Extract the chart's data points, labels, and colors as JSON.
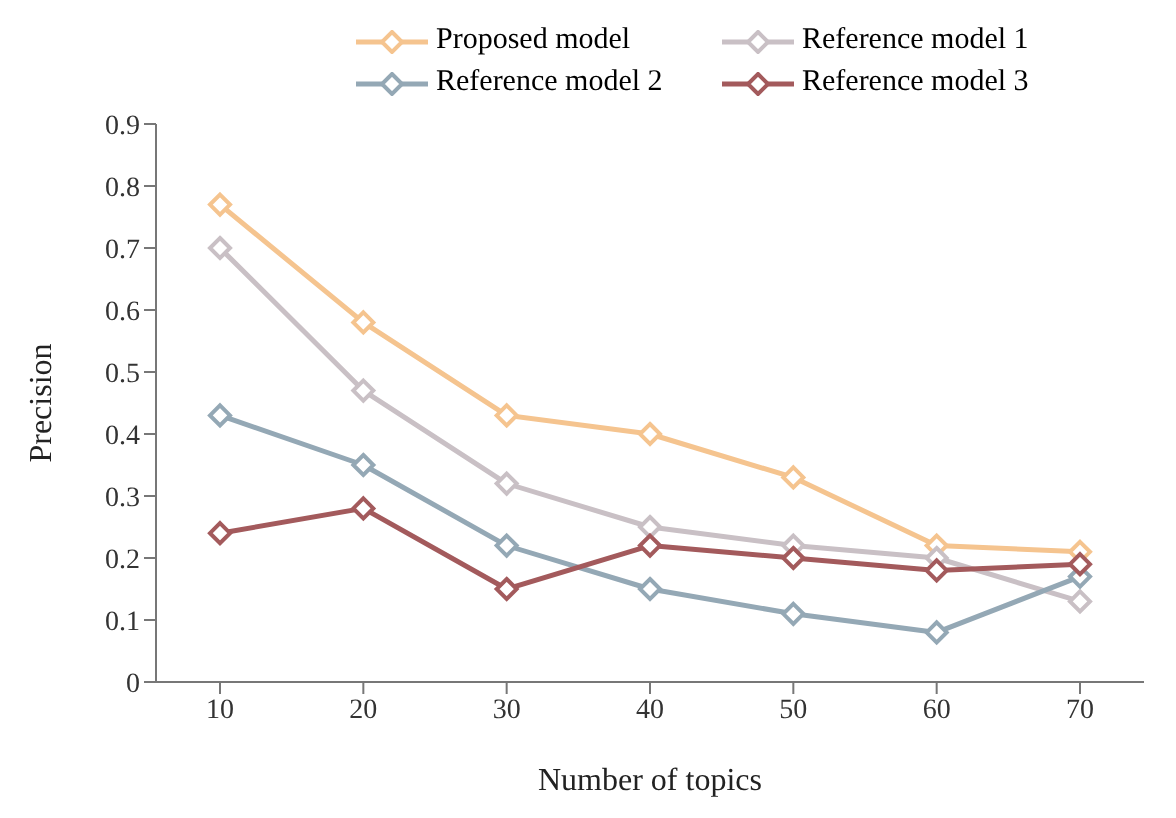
{
  "chart_data": {
    "type": "line",
    "xlabel": "Number of topics",
    "ylabel": "Precision",
    "categories": [
      "10",
      "20",
      "30",
      "40",
      "50",
      "60",
      "70"
    ],
    "series": [
      {
        "name": "Proposed model",
        "color": "#f5c48f",
        "values": [
          0.77,
          0.58,
          0.43,
          0.4,
          0.33,
          0.22,
          0.21
        ]
      },
      {
        "name": "Reference model 1",
        "color": "#c9c0c5",
        "values": [
          0.7,
          0.47,
          0.32,
          0.25,
          0.22,
          0.2,
          0.13
        ]
      },
      {
        "name": "Reference model 2",
        "color": "#94a8b5",
        "values": [
          0.43,
          0.35,
          0.22,
          0.15,
          0.11,
          0.08,
          0.17
        ]
      },
      {
        "name": "Reference model 3",
        "color": "#a35a5c",
        "values": [
          0.24,
          0.28,
          0.15,
          0.22,
          0.2,
          0.18,
          0.19
        ]
      }
    ],
    "ylim": [
      0,
      0.9
    ],
    "yticks": [
      0,
      0.1,
      0.2,
      0.3,
      0.4,
      0.5,
      0.6,
      0.7,
      0.8,
      0.9
    ],
    "grid": false,
    "legend": "top",
    "marker": "diamond",
    "line_style": "solid"
  }
}
